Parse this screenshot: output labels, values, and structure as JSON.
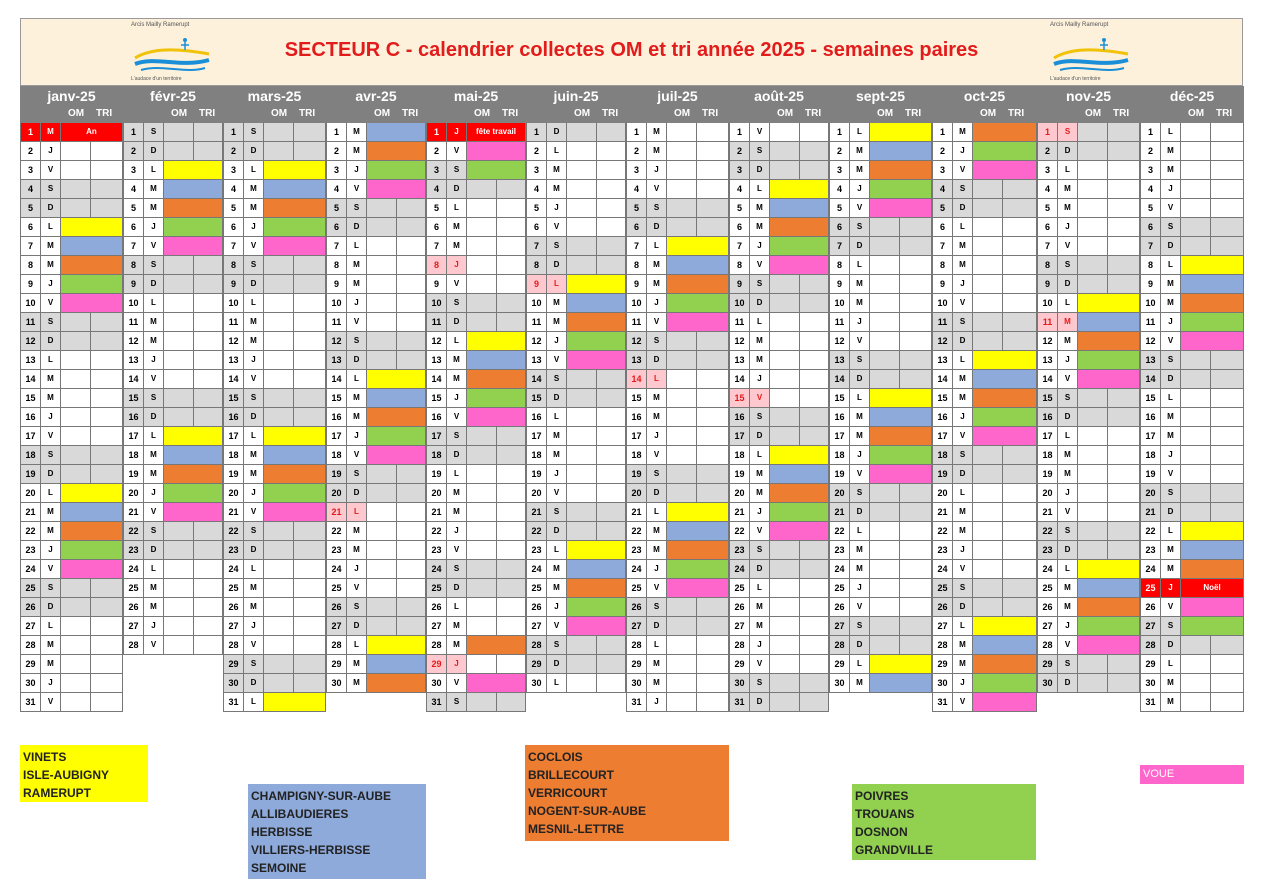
{
  "title": "SECTEUR C - calendrier collectes OM et tri année 2025 - semaines paires",
  "logo": {
    "top_text": "Arcis Mailly Ramerupt",
    "bottom_text": "L'audace d'un territoire"
  },
  "colors": {
    "yellow": "#ffff00",
    "blue": "#8eaadb",
    "orange": "#ed7d31",
    "green": "#92d050",
    "pink": "#ff66cc",
    "header_gray": "#808080",
    "weekend_gray": "#d9d9d9",
    "holiday_red": "#ff0000",
    "holiday_pink": "#ffc7ce"
  },
  "column_labels": {
    "om": "OM",
    "tri": "TRI"
  },
  "months": [
    {
      "name": "janv-25",
      "start": 3,
      "days": 31
    },
    {
      "name": "févr-25",
      "start": 6,
      "days": 28
    },
    {
      "name": "mars-25",
      "start": 6,
      "days": 31
    },
    {
      "name": "avr-25",
      "start": 2,
      "days": 30
    },
    {
      "name": "mai-25",
      "start": 4,
      "days": 31
    },
    {
      "name": "juin-25",
      "start": 0,
      "days": 30
    },
    {
      "name": "juil-25",
      "start": 2,
      "days": 31
    },
    {
      "name": "août-25",
      "start": 5,
      "days": 31
    },
    {
      "name": "sept-25",
      "start": 1,
      "days": 30
    },
    {
      "name": "oct-25",
      "start": 3,
      "days": 31
    },
    {
      "name": "nov-25",
      "start": 6,
      "days": 30
    },
    {
      "name": "déc-25",
      "start": 1,
      "days": 31
    }
  ],
  "weekday_letters": [
    "D",
    "L",
    "M",
    "M",
    "J",
    "V",
    "S"
  ],
  "holidays": [
    {
      "month": 0,
      "day": 1,
      "label": "An",
      "style": "red"
    },
    {
      "month": 4,
      "day": 1,
      "label": "fête travail",
      "style": "red"
    },
    {
      "month": 11,
      "day": 25,
      "label": "Noël",
      "style": "red"
    },
    {
      "month": 3,
      "day": 21,
      "style": "pink"
    },
    {
      "month": 4,
      "day": 8,
      "style": "pink"
    },
    {
      "month": 4,
      "day": 29,
      "style": "pink"
    },
    {
      "month": 5,
      "day": 9,
      "style": "pink"
    },
    {
      "month": 6,
      "day": 14,
      "style": "pink"
    },
    {
      "month": 7,
      "day": 15,
      "style": "pink"
    },
    {
      "month": 10,
      "day": 1,
      "style": "pink"
    },
    {
      "month": 10,
      "day": 11,
      "style": "pink"
    }
  ],
  "collections": {
    "0": {
      "6": "yellow",
      "7": "blue",
      "8": "orange",
      "9": "green",
      "10": "pink",
      "20": "yellow",
      "21": "blue",
      "22": "orange",
      "23": "green",
      "24": "pink"
    },
    "1": {
      "3": "yellow",
      "4": "blue",
      "5": "orange",
      "6": "green",
      "7": "pink",
      "17": "yellow",
      "18": "blue",
      "19": "orange",
      "20": "green",
      "21": "pink"
    },
    "2": {
      "3": "yellow",
      "4": "blue",
      "5": "orange",
      "6": "green",
      "7": "pink",
      "17": "yellow",
      "18": "blue",
      "19": "orange",
      "20": "green",
      "21": "pink",
      "31": "yellow"
    },
    "3": {
      "1": "blue",
      "2": "orange",
      "3": "green",
      "4": "pink",
      "14": "yellow",
      "15": "blue",
      "16": "orange",
      "17": "green",
      "18": "pink",
      "28": "yellow",
      "29": "blue",
      "30": "orange"
    },
    "4": {
      "2": "pink",
      "3": "green",
      "12": "yellow",
      "13": "blue",
      "14": "orange",
      "15": "green",
      "16": "pink",
      "28": "orange",
      "30": "pink"
    },
    "5": {
      "9": "yellow",
      "10": "blue",
      "11": "orange",
      "12": "green",
      "13": "pink",
      "23": "yellow",
      "24": "blue",
      "25": "orange",
      "26": "green",
      "27": "pink"
    },
    "6": {
      "7": "yellow",
      "8": "blue",
      "9": "orange",
      "10": "green",
      "11": "pink",
      "21": "yellow",
      "22": "blue",
      "23": "orange",
      "24": "green",
      "25": "pink"
    },
    "7": {
      "4": "yellow",
      "5": "blue",
      "6": "orange",
      "7": "green",
      "8": "pink",
      "18": "yellow",
      "19": "blue",
      "20": "orange",
      "21": "green",
      "22": "pink"
    },
    "8": {
      "1": "yellow",
      "2": "blue",
      "3": "orange",
      "4": "green",
      "5": "pink",
      "15": "yellow",
      "16": "blue",
      "17": "orange",
      "18": "green",
      "19": "pink",
      "29": "yellow",
      "30": "blue"
    },
    "9": {
      "1": "orange",
      "2": "green",
      "3": "pink",
      "13": "yellow",
      "14": "blue",
      "15": "orange",
      "16": "green",
      "17": "pink",
      "27": "yellow",
      "28": "blue",
      "29": "orange",
      "30": "green",
      "31": "pink"
    },
    "10": {
      "10": "yellow",
      "11": "blue",
      "12": "orange",
      "13": "green",
      "14": "pink",
      "24": "yellow",
      "25": "blue",
      "26": "orange",
      "27": "green",
      "28": "pink"
    },
    "11": {
      "8": "yellow",
      "9": "blue",
      "10": "orange",
      "11": "green",
      "12": "pink",
      "22": "yellow",
      "23": "blue",
      "24": "orange",
      "26": "pink",
      "27": "green"
    }
  },
  "legend": {
    "yellow": [
      "VINETS",
      "ISLE-AUBIGNY",
      "RAMERUPT"
    ],
    "blue": [
      "CHAMPIGNY-SUR-AUBE",
      "ALLIBAUDIERES",
      "HERBISSE",
      "VILLIERS-HERBISSE",
      "SEMOINE"
    ],
    "orange": [
      "COCLOIS",
      "BRILLECOURT",
      "VERRICOURT",
      "NOGENT-SUR-AUBE",
      "MESNIL-LETTRE"
    ],
    "green": [
      "POIVRES",
      "TROUANS",
      "DOSNON",
      "GRANDVILLE"
    ],
    "pink": [
      "VOUE"
    ]
  }
}
